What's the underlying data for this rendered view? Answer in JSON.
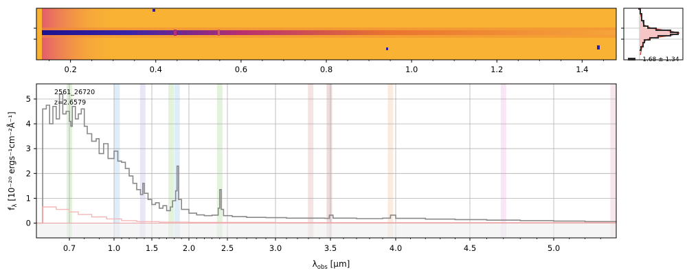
{
  "colors": {
    "spectrum_line": "#888888",
    "error_line": "#f4b6b6",
    "grid": "#b0b0b0",
    "image_background": "#f9b233",
    "image_trace": "#2a1fa0",
    "profile_data": "#2b2b2b",
    "profile_model": "#c0392b",
    "profile_fill": "#f6c6c6"
  },
  "panels": {
    "image_2d": {
      "x_ticks": [
        "0.2",
        "0.4",
        "0.6",
        "0.8",
        "1.0",
        "1.2",
        "1.4"
      ],
      "x_range": [
        0.12,
        1.48
      ]
    },
    "profile": {
      "annotation": "-1.68 ± 1.34"
    }
  },
  "chart_data": {
    "type": "line",
    "id_label": "2561_26720",
    "z_label": "z=2.6579",
    "xlabel": "λ_obs [μm]",
    "xlabel_main": "λ",
    "xlabel_sub": "obs",
    "xlabel_unit": " [μm]",
    "ylabel": "f_λ [10^-20 ergs^-1 cm^-2 Å^-1]",
    "ylabel_main": "f",
    "ylabel_sub": "λ",
    "ylabel_unit": " [10⁻²⁰ ergs⁻¹cm⁻²Å⁻¹]",
    "x_scale": "nonlinear (resolution-weighted wavelength)",
    "xlim": [
      0.6,
      5.4
    ],
    "ylim": [
      -0.55,
      5.6
    ],
    "x_ticks": [
      "0.7",
      "1.0",
      "1.5",
      "2.0",
      "2.5",
      "3.0",
      "3.5",
      "4.0",
      "4.5",
      "5.0"
    ],
    "y_ticks": [
      "0",
      "1",
      "2",
      "3",
      "4",
      "5"
    ],
    "grid": true,
    "line_bands": [
      {
        "x": 0.7,
        "color": "#bfe3b0"
      },
      {
        "x": 1.04,
        "color": "#b8d8f0"
      },
      {
        "x": 1.38,
        "color": "#c9c9f0"
      },
      {
        "x": 1.76,
        "color": "#bfe3b0"
      },
      {
        "x": 1.84,
        "color": "#b8d8f0"
      },
      {
        "x": 2.4,
        "color": "#bfe3b0"
      },
      {
        "x": 3.32,
        "color": "#e8c2c2"
      },
      {
        "x": 3.49,
        "color": "#d9b0b0"
      },
      {
        "x": 3.96,
        "color": "#f6d2b8"
      },
      {
        "x": 4.7,
        "color": "#f0c8ec"
      },
      {
        "x": 5.38,
        "color": "#f0c8d8"
      }
    ],
    "series": [
      {
        "role": "flux",
        "x": [
          0.6,
          0.618,
          0.619,
          0.63,
          0.64,
          0.65,
          0.66,
          0.67,
          0.68,
          0.69,
          0.7,
          0.71,
          0.72,
          0.74,
          0.76,
          0.78,
          0.8,
          0.82,
          0.85,
          0.88,
          0.9,
          0.93,
          0.96,
          1.0,
          1.05,
          1.1,
          1.15,
          1.2,
          1.25,
          1.3,
          1.35,
          1.38,
          1.4,
          1.45,
          1.5,
          1.55,
          1.6,
          1.65,
          1.7,
          1.75,
          1.78,
          1.82,
          1.84,
          1.86,
          1.9,
          2.0,
          2.1,
          2.2,
          2.3,
          2.38,
          2.4,
          2.42,
          2.45,
          2.55,
          2.7,
          2.9,
          3.1,
          3.3,
          3.45,
          3.49,
          3.52,
          3.7,
          3.9,
          3.96,
          4.0,
          4.2,
          4.4,
          4.6,
          4.8,
          5.0,
          5.2,
          5.4
        ],
        "y": [
          0.0,
          0.0,
          4.6,
          4.75,
          4.0,
          4.7,
          4.2,
          5.2,
          4.4,
          4.5,
          4.1,
          3.9,
          4.7,
          4.2,
          4.4,
          4.6,
          3.9,
          3.6,
          3.3,
          3.4,
          2.8,
          3.2,
          2.6,
          2.9,
          2.5,
          2.45,
          2.2,
          1.9,
          1.6,
          1.35,
          1.15,
          1.6,
          1.2,
          0.95,
          0.75,
          0.82,
          0.6,
          0.7,
          0.5,
          0.65,
          0.9,
          1.3,
          2.3,
          0.95,
          0.55,
          0.4,
          0.33,
          0.3,
          0.32,
          0.6,
          1.35,
          0.55,
          0.3,
          0.26,
          0.23,
          0.22,
          0.2,
          0.2,
          0.19,
          0.32,
          0.2,
          0.18,
          0.2,
          0.32,
          0.19,
          0.16,
          0.14,
          0.12,
          0.1,
          0.08,
          0.06,
          0.05
        ]
      },
      {
        "role": "error",
        "x": [
          0.6,
          0.618,
          0.62,
          0.66,
          0.7,
          0.76,
          0.85,
          0.95,
          1.1,
          1.3,
          1.6,
          2.0,
          3.0,
          5.4
        ],
        "y": [
          0.0,
          0.0,
          0.65,
          0.55,
          0.45,
          0.35,
          0.25,
          0.17,
          0.1,
          0.06,
          0.04,
          0.03,
          0.02,
          0.02
        ]
      }
    ]
  }
}
